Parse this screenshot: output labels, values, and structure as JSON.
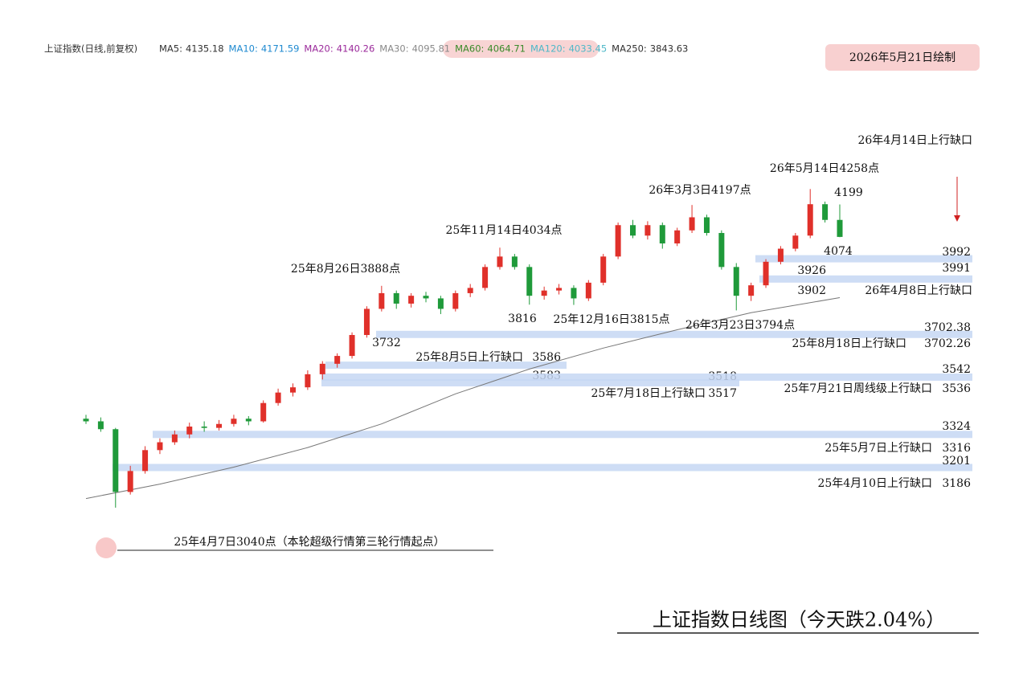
{
  "chart_data": {
    "type": "candlestick",
    "title": "上证指数日线图（今天跌2.04%）",
    "stamp": "2026年5月21日绘制",
    "index_name": "上证指数(日线,前复权)",
    "ma_legend": [
      {
        "label": "MA5:",
        "value": 4135.18,
        "color": "#333333"
      },
      {
        "label": "MA10:",
        "value": 4171.59,
        "color": "#1f8ad0"
      },
      {
        "label": "MA20:",
        "value": 4140.26,
        "color": "#9b2a9b"
      },
      {
        "label": "MA30:",
        "value": 4095.81,
        "color": "#8a8a8a"
      },
      {
        "label": "MA60:",
        "value": 4064.71,
        "color": "#3a8a2a"
      },
      {
        "label": "MA120:",
        "value": 4033.45,
        "color": "#4fb8c8"
      },
      {
        "label": "MA250:",
        "value": 3843.63,
        "color": "#333333"
      }
    ],
    "ylim": [
      2960,
      4520
    ],
    "up_color": "#e0302a",
    "down_color": "#1f9a3a",
    "open": [
      3380,
      3370,
      3340,
      3100,
      3180,
      3260,
      3290,
      3320,
      3350,
      3345,
      3360,
      3380,
      3370,
      3440,
      3480,
      3500,
      3550,
      3590,
      3620,
      3700,
      3800,
      3860,
      3820,
      3850,
      3840,
      3800,
      3860,
      3880,
      3960,
      4000,
      3960,
      3850,
      3870,
      3880,
      3840,
      3900,
      4000,
      4120,
      4080,
      4120,
      4050,
      4100,
      4150,
      4090,
      3960,
      3850,
      3890,
      3980,
      4030,
      4080,
      4200,
      4140
    ],
    "high": [
      3395,
      3385,
      3345,
      3200,
      3275,
      3305,
      3335,
      3365,
      3370,
      3375,
      3395,
      3390,
      3450,
      3495,
      3515,
      3565,
      3600,
      3630,
      3710,
      3810,
      3888,
      3870,
      3860,
      3865,
      3850,
      3870,
      3895,
      3970,
      4034,
      4010,
      3970,
      3885,
      3895,
      3890,
      3910,
      4010,
      4130,
      4140,
      4135,
      4130,
      4110,
      4197,
      4160,
      4100,
      3975,
      3900,
      3990,
      4040,
      4090,
      4258,
      4210,
      4199
    ],
    "low": [
      3360,
      3330,
      3040,
      3090,
      3170,
      3245,
      3280,
      3305,
      3330,
      3335,
      3350,
      3355,
      3365,
      3430,
      3465,
      3490,
      3530,
      3575,
      3610,
      3690,
      3790,
      3800,
      3805,
      3825,
      3780,
      3790,
      3845,
      3870,
      3950,
      3950,
      3816,
      3835,
      3855,
      3815,
      3830,
      3890,
      3990,
      4070,
      4065,
      4030,
      4040,
      4090,
      4080,
      3950,
      3794,
      3830,
      3880,
      3970,
      4020,
      4070,
      4130,
      4074
    ],
    "close": [
      3370,
      3340,
      3100,
      3180,
      3260,
      3290,
      3320,
      3350,
      3345,
      3360,
      3380,
      3370,
      3440,
      3480,
      3500,
      3550,
      3590,
      3620,
      3700,
      3800,
      3860,
      3820,
      3850,
      3840,
      3800,
      3860,
      3880,
      3960,
      4000,
      3960,
      3850,
      3870,
      3880,
      3840,
      3900,
      4000,
      4120,
      4080,
      4120,
      4050,
      4100,
      4150,
      4090,
      3960,
      3850,
      3890,
      3980,
      4030,
      4080,
      4200,
      4140,
      4075
    ],
    "ma250": {
      "name": "MA250",
      "color": "#777777",
      "x": [
        0,
        5,
        10,
        15,
        20,
        25,
        30,
        35,
        40,
        45,
        51
      ],
      "values": [
        3075,
        3130,
        3195,
        3270,
        3360,
        3475,
        3570,
        3650,
        3720,
        3785,
        3843
      ]
    },
    "gap_color": "#c6d7f3",
    "gaps": [
      {
        "label": "26年4月14日上行缺口",
        "top": 3992,
        "bottom": 3991
      },
      {
        "label": "26年4月8日上行缺口",
        "top": 3926,
        "bottom": 3902
      },
      {
        "label": "25年8月18日上行缺口",
        "top": 3702.38,
        "bottom": 3702.26
      },
      {
        "label": "25年8月5日上行缺口",
        "top": 3586,
        "bottom": 3583
      },
      {
        "label": "25年7月18日上行缺口",
        "top": 3518,
        "bottom": 3517
      },
      {
        "label": "25年7月21日周线级上行缺口",
        "top": 3542,
        "bottom": 3536
      },
      {
        "label": "25年5月7日上行缺口",
        "top": 3324,
        "bottom": 3316
      },
      {
        "label": "25年4月10日上行缺口",
        "top": 3201,
        "bottom": 3186
      }
    ],
    "price_labels": [
      4199,
      4074,
      3816,
      3732
    ],
    "annotations": [
      "26年5月14日4258点",
      "26年3月3日4197点",
      "25年11月14日4034点",
      "25年8月26日3888点",
      "25年12月16日3815点",
      "26年3月23日3794点",
      "25年4月7日3040点（本轮超级行情第三轮行情起点）"
    ]
  }
}
